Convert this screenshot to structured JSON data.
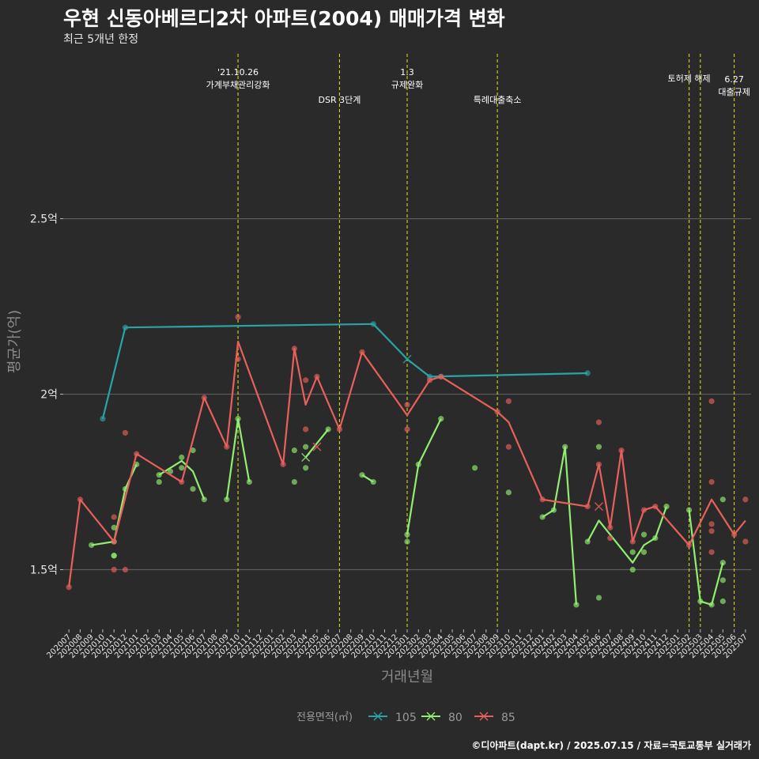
{
  "title": "우현 신동아베르디2차 아파트(2004) 매매가격 변화",
  "subtitle": "최근 5개년 한정",
  "caption": "©디아파트(dapt.kr) / 2025.07.15 / 자료=국토교통부 실거래가",
  "chart_data": {
    "type": "line",
    "xlabel": "거래년월",
    "ylabel": "평균가(억)",
    "y_unit": "억",
    "ylim": [
      1.33,
      2.97
    ],
    "y_ticks": [
      1.5,
      2,
      2.5
    ],
    "y_tick_labels": [
      "1.5억",
      "2억",
      "2.5억"
    ],
    "grid": true,
    "legend_title": "전용면적(㎡)",
    "legend_position": "bottom",
    "categories": [
      "202007",
      "202008",
      "202009",
      "202010",
      "202011",
      "202012",
      "202101",
      "202102",
      "202103",
      "202104",
      "202105",
      "202106",
      "202107",
      "202108",
      "202109",
      "202110",
      "202111",
      "202112",
      "202201",
      "202202",
      "202203",
      "202204",
      "202205",
      "202206",
      "202207",
      "202208",
      "202209",
      "202210",
      "202211",
      "202212",
      "202301",
      "202302",
      "202303",
      "202304",
      "202305",
      "202306",
      "202307",
      "202308",
      "202309",
      "202310",
      "202311",
      "202312",
      "202401",
      "202402",
      "202403",
      "202404",
      "202405",
      "202406",
      "202407",
      "202408",
      "202409",
      "202410",
      "202411",
      "202412",
      "202501",
      "202502",
      "202503",
      "202504",
      "202505",
      "202506",
      "202507"
    ],
    "annotations": [
      {
        "x": "202110",
        "label": "'21.10.26\n가계부채관리강화",
        "level": 0
      },
      {
        "x": "202207",
        "label": "DSR 3단계",
        "level": 2
      },
      {
        "x": "202301",
        "label": "1.3\n규제완화",
        "level": 0
      },
      {
        "x": "202309",
        "label": "특례대출축소",
        "level": 2
      },
      {
        "x": "202502",
        "label": "토허제 해제",
        "level": 1
      },
      {
        "x": "202503",
        "label": "",
        "level": 1
      },
      {
        "x": "202506",
        "label": "6.27\n대출규제",
        "level": 3
      }
    ],
    "series": [
      {
        "name": "105",
        "color": "#2aa3a3",
        "line": [
          [
            "202010",
            1.93
          ],
          [
            "202012",
            2.19
          ],
          [
            "202210",
            2.2
          ],
          [
            "202301",
            2.1
          ],
          [
            "202303",
            2.05
          ],
          [
            "202405",
            2.06
          ]
        ],
        "points": [
          [
            "202010",
            1.93
          ],
          [
            "202012",
            2.19
          ],
          [
            "202210",
            2.2
          ],
          [
            "202303",
            2.05
          ],
          [
            "202304",
            2.05
          ],
          [
            "202405",
            2.06
          ]
        ],
        "markers_x": [
          [
            "202301",
            2.1
          ]
        ]
      },
      {
        "name": "80",
        "color": "#90ee70",
        "line": [
          [
            "202009",
            1.57
          ],
          [
            "202011",
            1.58
          ],
          [
            "202012",
            1.73
          ],
          [
            "202101",
            1.8
          ],
          [
            "null",
            0
          ],
          [
            "202103",
            1.77
          ],
          [
            "202105",
            1.81
          ],
          [
            "202106",
            1.78
          ],
          [
            "202107",
            1.7
          ],
          [
            "null",
            0
          ],
          [
            "202109",
            1.7
          ],
          [
            "202110",
            1.93
          ],
          [
            "202111",
            1.75
          ],
          [
            "null",
            0
          ],
          [
            "202204",
            1.82
          ],
          [
            "202205",
            1.86
          ],
          [
            "202206",
            1.9
          ],
          [
            "null",
            0
          ],
          [
            "202209",
            1.77
          ],
          [
            "202210",
            1.75
          ],
          [
            "null",
            0
          ],
          [
            "202301",
            1.6
          ],
          [
            "202302",
            1.8
          ],
          [
            "202304",
            1.93
          ],
          [
            "null",
            0
          ],
          [
            "202401",
            1.65
          ],
          [
            "202402",
            1.67
          ],
          [
            "202403",
            1.85
          ],
          [
            "202404",
            1.4
          ],
          [
            "null",
            0
          ],
          [
            "202405",
            1.58
          ],
          [
            "202406",
            1.64
          ],
          [
            "202409",
            1.52
          ],
          [
            "202410",
            1.57
          ],
          [
            "202411",
            1.59
          ],
          [
            "202412",
            1.68
          ],
          [
            "null",
            0
          ],
          [
            "202502",
            1.67
          ],
          [
            "202503",
            1.41
          ],
          [
            "202504",
            1.4
          ],
          [
            "202505",
            1.52
          ]
        ],
        "points": [
          [
            "202009",
            1.57
          ],
          [
            "202011",
            1.62
          ],
          [
            "202011",
            1.54
          ],
          [
            "202011",
            1.58
          ],
          [
            "202011",
            1.54
          ],
          [
            "202012",
            1.73
          ],
          [
            "202101",
            1.8
          ],
          [
            "202103",
            1.77
          ],
          [
            "202103",
            1.75
          ],
          [
            "202104",
            1.78
          ],
          [
            "202105",
            1.82
          ],
          [
            "202105",
            1.79
          ],
          [
            "202106",
            1.84
          ],
          [
            "202106",
            1.73
          ],
          [
            "202107",
            1.7
          ],
          [
            "202109",
            1.7
          ],
          [
            "202110",
            1.93
          ],
          [
            "202111",
            1.75
          ],
          [
            "202203",
            1.84
          ],
          [
            "202203",
            1.75
          ],
          [
            "202204",
            1.85
          ],
          [
            "202204",
            1.79
          ],
          [
            "202206",
            1.9
          ],
          [
            "202209",
            1.77
          ],
          [
            "202210",
            1.75
          ],
          [
            "202301",
            1.6
          ],
          [
            "202301",
            1.58
          ],
          [
            "202302",
            1.8
          ],
          [
            "202304",
            1.93
          ],
          [
            "202307",
            1.79
          ],
          [
            "202310",
            1.72
          ],
          [
            "202401",
            1.65
          ],
          [
            "202402",
            1.67
          ],
          [
            "202403",
            1.85
          ],
          [
            "202404",
            1.4
          ],
          [
            "202405",
            1.58
          ],
          [
            "202406",
            1.85
          ],
          [
            "202406",
            1.42
          ],
          [
            "202409",
            1.5
          ],
          [
            "202409",
            1.55
          ],
          [
            "202410",
            1.6
          ],
          [
            "202410",
            1.55
          ],
          [
            "202411",
            1.59
          ],
          [
            "202412",
            1.68
          ],
          [
            "202502",
            1.67
          ],
          [
            "202503",
            1.41
          ],
          [
            "202504",
            1.4
          ],
          [
            "202505",
            1.52
          ],
          [
            "202505",
            1.7
          ],
          [
            "202505",
            1.47
          ],
          [
            "202505",
            1.41
          ]
        ],
        "markers_x": [
          [
            "202204",
            1.82
          ]
        ]
      },
      {
        "name": "85",
        "color": "#e8605c",
        "line": [
          [
            "202007",
            1.45
          ],
          [
            "202008",
            1.7
          ],
          [
            "202011",
            1.58
          ],
          [
            "202101",
            1.83
          ],
          [
            "202105",
            1.75
          ],
          [
            "202107",
            1.99
          ],
          [
            "202109",
            1.85
          ],
          [
            "202110",
            2.15
          ],
          [
            "202202",
            1.8
          ],
          [
            "202203",
            2.13
          ],
          [
            "202204",
            1.97
          ],
          [
            "202205",
            2.05
          ],
          [
            "202207",
            1.9
          ],
          [
            "202209",
            2.12
          ],
          [
            "202301",
            1.94
          ],
          [
            "202303",
            2.04
          ],
          [
            "202304",
            2.05
          ],
          [
            "202309",
            1.95
          ],
          [
            "202310",
            1.92
          ],
          [
            "202401",
            1.7
          ],
          [
            "202405",
            1.68
          ],
          [
            "202406",
            1.8
          ],
          [
            "202407",
            1.62
          ],
          [
            "202408",
            1.84
          ],
          [
            "202409",
            1.58
          ],
          [
            "202410",
            1.67
          ],
          [
            "202411",
            1.68
          ],
          [
            "202502",
            1.57
          ],
          [
            "202504",
            1.7
          ],
          [
            "202506",
            1.6
          ],
          [
            "202507",
            1.64
          ]
        ],
        "points": [
          [
            "202007",
            1.45
          ],
          [
            "202008",
            1.7
          ],
          [
            "202011",
            1.65
          ],
          [
            "202011",
            1.5
          ],
          [
            "202011",
            1.58
          ],
          [
            "202012",
            1.89
          ],
          [
            "202012",
            1.5
          ],
          [
            "202101",
            1.83
          ],
          [
            "202105",
            1.75
          ],
          [
            "202107",
            1.99
          ],
          [
            "202109",
            1.85
          ],
          [
            "202110",
            2.22
          ],
          [
            "202110",
            2.1
          ],
          [
            "202202",
            1.8
          ],
          [
            "202203",
            2.13
          ],
          [
            "202204",
            2.04
          ],
          [
            "202204",
            1.9
          ],
          [
            "202205",
            2.05
          ],
          [
            "202207",
            1.9
          ],
          [
            "202209",
            2.12
          ],
          [
            "202301",
            1.97
          ],
          [
            "202301",
            1.9
          ],
          [
            "202303",
            2.04
          ],
          [
            "202304",
            2.05
          ],
          [
            "202309",
            1.95
          ],
          [
            "202310",
            1.98
          ],
          [
            "202310",
            1.85
          ],
          [
            "202401",
            1.7
          ],
          [
            "202405",
            1.68
          ],
          [
            "202406",
            1.92
          ],
          [
            "202406",
            1.8
          ],
          [
            "202407",
            1.62
          ],
          [
            "202407",
            1.59
          ],
          [
            "202408",
            1.84
          ],
          [
            "202409",
            1.58
          ],
          [
            "202410",
            1.67
          ],
          [
            "202411",
            1.68
          ],
          [
            "202502",
            1.57
          ],
          [
            "202504",
            1.98
          ],
          [
            "202504",
            1.75
          ],
          [
            "202504",
            1.63
          ],
          [
            "202504",
            1.61
          ],
          [
            "202504",
            1.55
          ],
          [
            "202506",
            1.6
          ],
          [
            "202507",
            1.7
          ],
          [
            "202507",
            1.58
          ]
        ],
        "markers_x": [
          [
            "202205",
            1.85
          ],
          [
            "202406",
            1.68
          ]
        ]
      }
    ]
  }
}
